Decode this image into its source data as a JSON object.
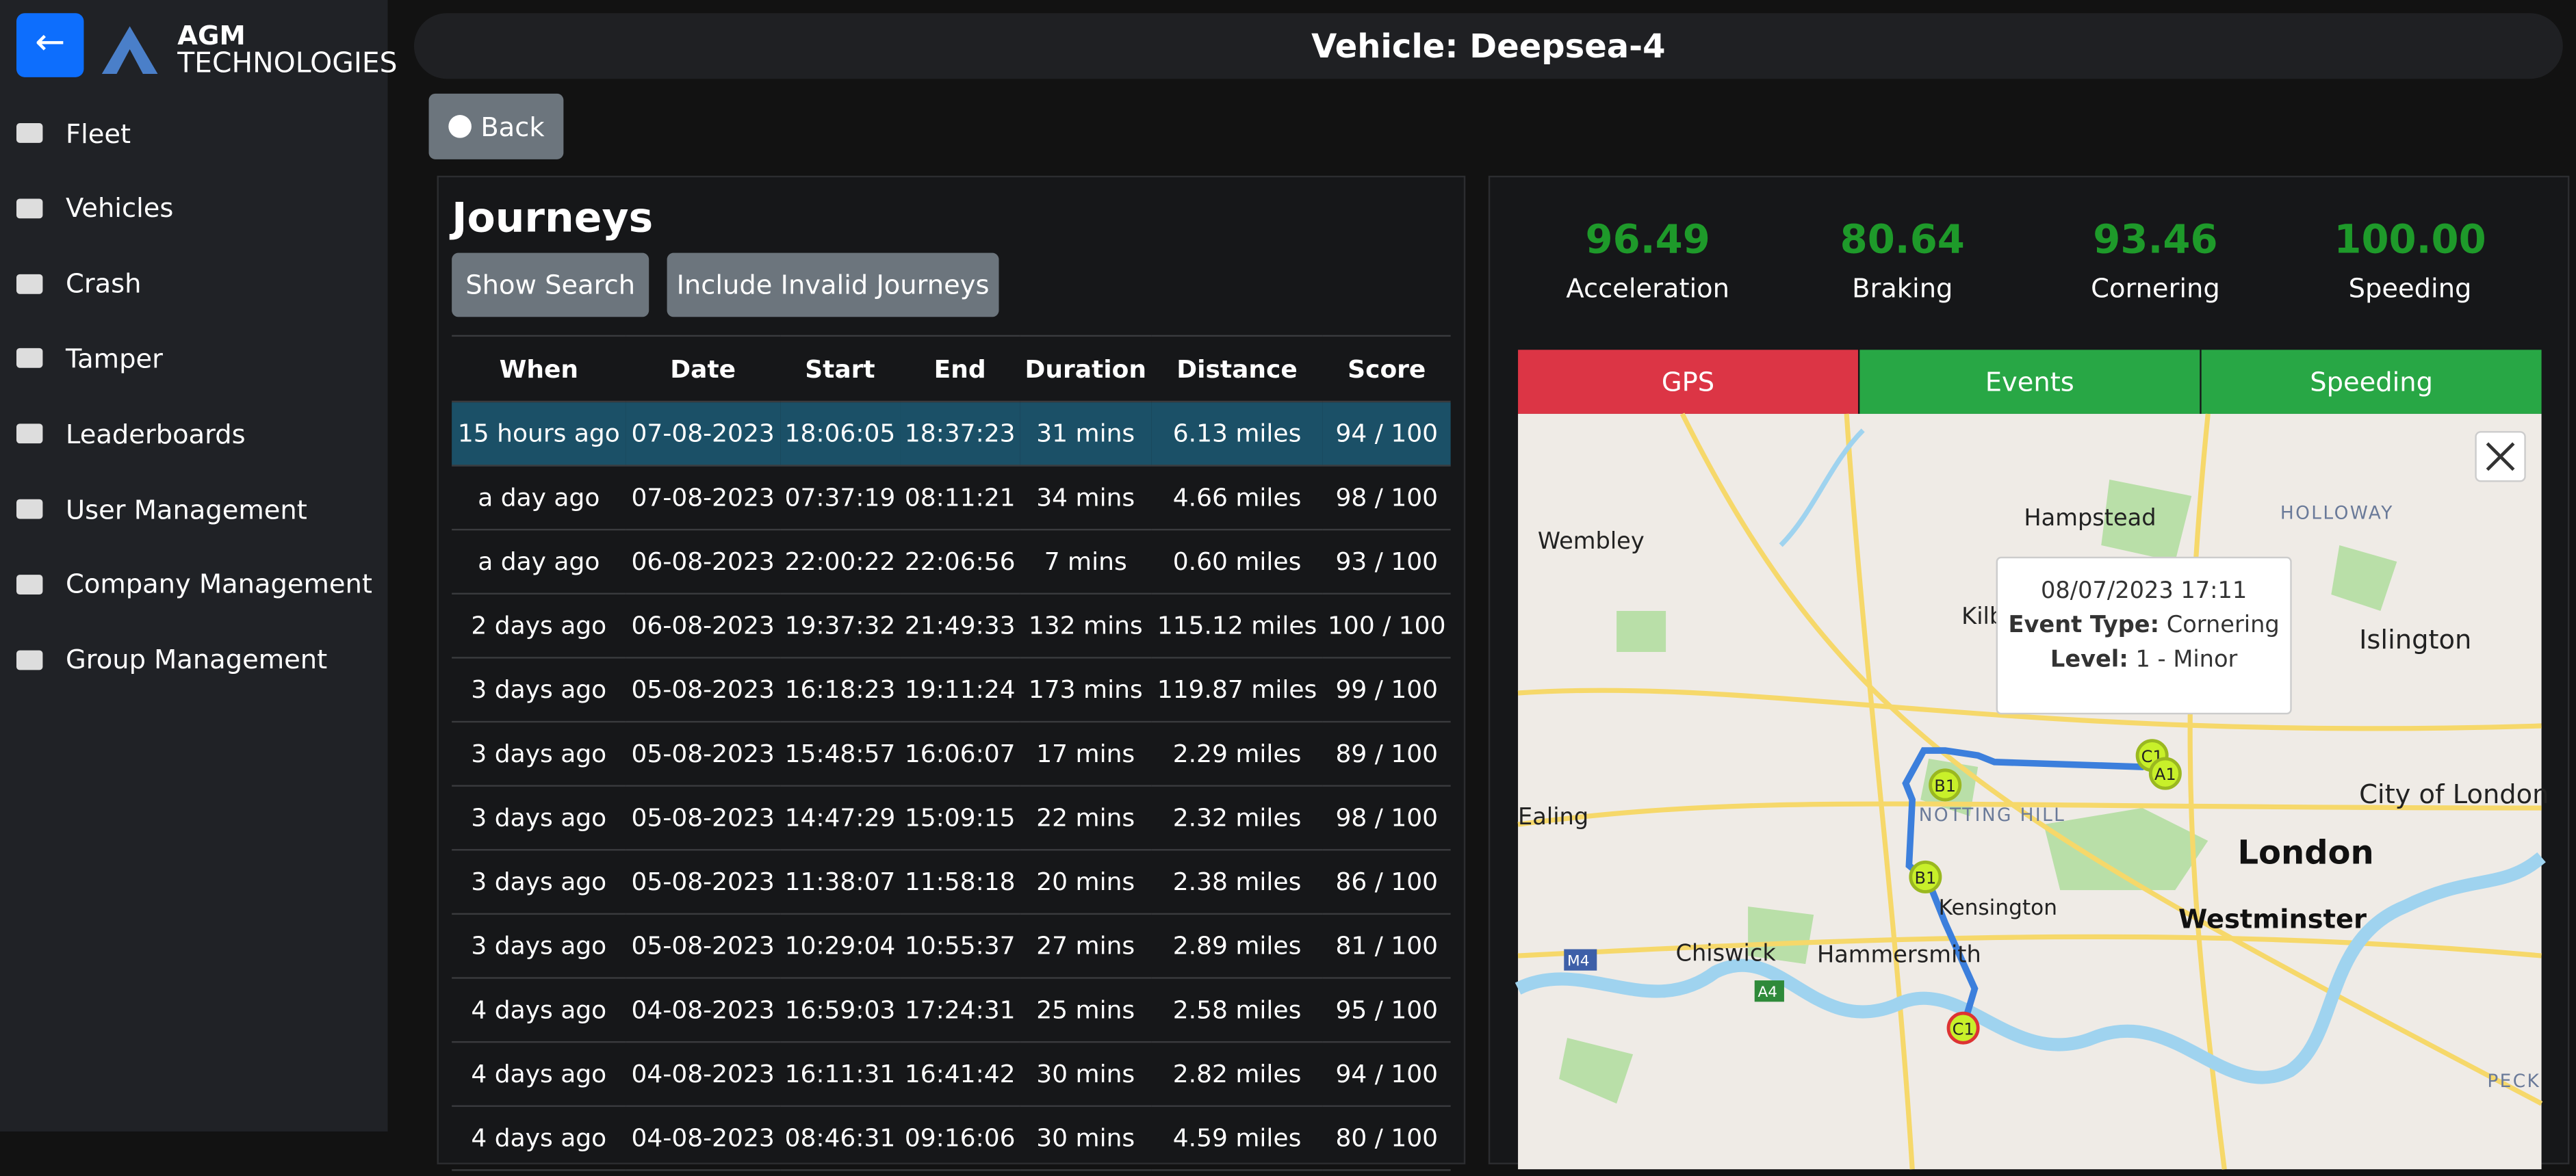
{
  "sidebar": {
    "logo_line1": "AGM",
    "logo_line2": "TECHNOLOGIES",
    "nav": [
      "Fleet",
      "Vehicles",
      "Crash",
      "Tamper",
      "Leaderboards",
      "User Management",
      "Company Management",
      "Group Management"
    ]
  },
  "header": {
    "title": "Vehicle: Deepsea-4"
  },
  "back_button": "Back",
  "journeys": {
    "title": "Journeys",
    "buttons": [
      "Show Search",
      "Include Invalid Journeys"
    ],
    "table": {
      "columns": [
        "When",
        "Date",
        "Start",
        "End",
        "Duration",
        "Distance",
        "Score"
      ],
      "rows": [
        [
          "15 hours ago",
          "07-08-2023",
          "18:06:05",
          "18:37:23",
          "31 mins",
          "6.13 miles",
          "94 / 100"
        ],
        [
          "a day ago",
          "07-08-2023",
          "07:37:19",
          "08:11:21",
          "34 mins",
          "4.66 miles",
          "98 / 100"
        ],
        [
          "a day ago",
          "06-08-2023",
          "22:00:22",
          "22:06:56",
          "7 mins",
          "0.60 miles",
          "93 / 100"
        ],
        [
          "2 days ago",
          "06-08-2023",
          "19:37:32",
          "21:49:33",
          "132 mins",
          "115.12 miles",
          "100 / 100"
        ],
        [
          "3 days ago",
          "05-08-2023",
          "16:18:23",
          "19:11:24",
          "173 mins",
          "119.87 miles",
          "99 / 100"
        ],
        [
          "3 days ago",
          "05-08-2023",
          "15:48:57",
          "16:06:07",
          "17 mins",
          "2.29 miles",
          "89 / 100"
        ],
        [
          "3 days ago",
          "05-08-2023",
          "14:47:29",
          "15:09:15",
          "22 mins",
          "2.32 miles",
          "98 / 100"
        ],
        [
          "3 days ago",
          "05-08-2023",
          "11:38:07",
          "11:58:18",
          "20 mins",
          "2.38 miles",
          "86 / 100"
        ],
        [
          "3 days ago",
          "05-08-2023",
          "10:29:04",
          "10:55:37",
          "27 mins",
          "2.89 miles",
          "81 / 100"
        ],
        [
          "4 days ago",
          "04-08-2023",
          "16:59:03",
          "17:24:31",
          "25 mins",
          "2.58 miles",
          "95 / 100"
        ],
        [
          "4 days ago",
          "04-08-2023",
          "16:11:31",
          "16:41:42",
          "30 mins",
          "2.82 miles",
          "94 / 100"
        ],
        [
          "4 days ago",
          "04-08-2023",
          "08:46:31",
          "09:16:06",
          "30 mins",
          "4.59 miles",
          "80 / 100"
        ]
      ]
    }
  },
  "scores": [
    {
      "value": "96.49",
      "label": "Acceleration"
    },
    {
      "value": "80.64",
      "label": "Braking"
    },
    {
      "value": "93.46",
      "label": "Cornering"
    },
    {
      "value": "100.00",
      "label": "Speeding"
    }
  ],
  "tabs": [
    "GPS",
    "Events",
    "Speeding"
  ],
  "map": {
    "places": [
      "Wembley",
      "Hampstead",
      "HOLLOWAY",
      "Islington",
      "Kilburn",
      "Ealing",
      "NOTTING HILL",
      "City of London",
      "London",
      "Westminster",
      "Kensington",
      "Chiswick",
      "Hammersmith",
      "PECK",
      "M4",
      "A4"
    ],
    "markers": [
      "B1",
      "B1",
      "C1",
      "A1",
      "C1"
    ],
    "tooltip": {
      "date": "08/07/2023 17:11",
      "event_type_label": "Event Type:",
      "event_type": "Cornering",
      "level_label": "Level:",
      "level": "1 - Minor"
    }
  }
}
